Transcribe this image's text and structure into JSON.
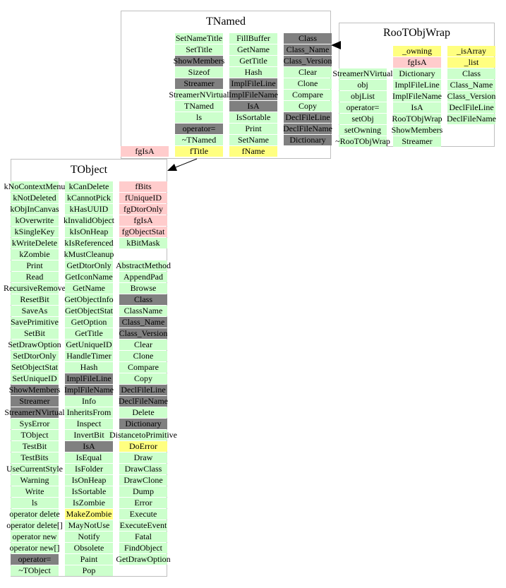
{
  "boxes": [
    {
      "title": "TNamed",
      "columns": [
        [
          null,
          null,
          null,
          null,
          null,
          null,
          null,
          null,
          null,
          null,
          {
            "text": "fgIsA",
            "color": "#ffcccc"
          }
        ],
        [
          {
            "text": "SetNameTitle",
            "color": "#ccffcc"
          },
          {
            "text": "SetTitle",
            "color": "#ccffcc"
          },
          {
            "text": "ShowMembers",
            "color": "#808080"
          },
          {
            "text": "Sizeof",
            "color": "#ccffcc"
          },
          {
            "text": "Streamer",
            "color": "#808080"
          },
          {
            "text": "StreamerNVirtual",
            "color": "#ccffcc"
          },
          {
            "text": "TNamed",
            "color": "#ccffcc"
          },
          {
            "text": "ls",
            "color": "#ccffcc"
          },
          {
            "text": "operator=",
            "color": "#808080"
          },
          {
            "text": "~TNamed",
            "color": "#ccffcc"
          },
          {
            "text": "fTitle",
            "color": "#ffff80"
          }
        ],
        [
          {
            "text": "FillBuffer",
            "color": "#ccffcc"
          },
          {
            "text": "GetName",
            "color": "#ccffcc"
          },
          {
            "text": "GetTitle",
            "color": "#ccffcc"
          },
          {
            "text": "Hash",
            "color": "#ccffcc"
          },
          {
            "text": "ImplFileLine",
            "color": "#808080"
          },
          {
            "text": "ImplFileName",
            "color": "#808080"
          },
          {
            "text": "IsA",
            "color": "#808080"
          },
          {
            "text": "IsSortable",
            "color": "#ccffcc"
          },
          {
            "text": "Print",
            "color": "#ccffcc"
          },
          {
            "text": "SetName",
            "color": "#ccffcc"
          },
          {
            "text": "fName",
            "color": "#ffff80"
          }
        ],
        [
          {
            "text": "Class",
            "color": "#808080"
          },
          {
            "text": "Class_Name",
            "color": "#808080"
          },
          {
            "text": "Class_Version",
            "color": "#808080"
          },
          {
            "text": "Clear",
            "color": "#ccffcc"
          },
          {
            "text": "Clone",
            "color": "#ccffcc"
          },
          {
            "text": "Compare",
            "color": "#ccffcc"
          },
          {
            "text": "Copy",
            "color": "#ccffcc"
          },
          {
            "text": "DeclFileLine",
            "color": "#808080"
          },
          {
            "text": "DeclFileName",
            "color": "#808080"
          },
          {
            "text": "Dictionary",
            "color": "#808080"
          }
        ]
      ]
    },
    {
      "title": "RooTObjWrap",
      "columns": [
        [
          null,
          null,
          {
            "text": "StreamerNVirtual",
            "color": "#ccffcc"
          },
          {
            "text": "obj",
            "color": "#ccffcc"
          },
          {
            "text": "objList",
            "color": "#ccffcc"
          },
          {
            "text": "operator=",
            "color": "#ccffcc"
          },
          {
            "text": "setObj",
            "color": "#ccffcc"
          },
          {
            "text": "setOwning",
            "color": "#ccffcc"
          },
          {
            "text": "~RooTObjWrap",
            "color": "#ccffcc"
          }
        ],
        [
          {
            "text": "_owning",
            "color": "#ffff80"
          },
          {
            "text": "fgIsA",
            "color": "#ffcccc"
          },
          {
            "text": "Dictionary",
            "color": "#ccffcc"
          },
          {
            "text": "ImplFileLine",
            "color": "#ccffcc"
          },
          {
            "text": "ImplFileName",
            "color": "#ccffcc"
          },
          {
            "text": "IsA",
            "color": "#ccffcc"
          },
          {
            "text": "RooTObjWrap",
            "color": "#ccffcc"
          },
          {
            "text": "ShowMembers",
            "color": "#ccffcc"
          },
          {
            "text": "Streamer",
            "color": "#ccffcc"
          }
        ],
        [
          {
            "text": "_isArray",
            "color": "#ffff80"
          },
          {
            "text": "_list",
            "color": "#ffff80"
          },
          {
            "text": "Class",
            "color": "#ccffcc"
          },
          {
            "text": "Class_Name",
            "color": "#ccffcc"
          },
          {
            "text": "Class_Version",
            "color": "#ccffcc"
          },
          {
            "text": "DeclFileLine",
            "color": "#ccffcc"
          },
          {
            "text": "DeclFileName",
            "color": "#ccffcc"
          }
        ]
      ]
    },
    {
      "title": "TObject",
      "columns": [
        [
          {
            "text": "kNoContextMenu",
            "color": "#ccffcc"
          },
          {
            "text": "kNotDeleted",
            "color": "#ccffcc"
          },
          {
            "text": "kObjInCanvas",
            "color": "#ccffcc"
          },
          {
            "text": "kOverwrite",
            "color": "#ccffcc"
          },
          {
            "text": "kSingleKey",
            "color": "#ccffcc"
          },
          {
            "text": "kWriteDelete",
            "color": "#ccffcc"
          },
          {
            "text": "kZombie",
            "color": "#ccffcc"
          },
          {
            "text": "Print",
            "color": "#ccffcc"
          },
          {
            "text": "Read",
            "color": "#ccffcc"
          },
          {
            "text": "RecursiveRemove",
            "color": "#ccffcc"
          },
          {
            "text": "ResetBit",
            "color": "#ccffcc"
          },
          {
            "text": "SaveAs",
            "color": "#ccffcc"
          },
          {
            "text": "SavePrimitive",
            "color": "#ccffcc"
          },
          {
            "text": "SetBit",
            "color": "#ccffcc"
          },
          {
            "text": "SetDrawOption",
            "color": "#ccffcc"
          },
          {
            "text": "SetDtorOnly",
            "color": "#ccffcc"
          },
          {
            "text": "SetObjectStat",
            "color": "#ccffcc"
          },
          {
            "text": "SetUniqueID",
            "color": "#ccffcc"
          },
          {
            "text": "ShowMembers",
            "color": "#808080"
          },
          {
            "text": "Streamer",
            "color": "#808080"
          },
          {
            "text": "StreamerNVirtual",
            "color": "#808080"
          },
          {
            "text": "SysError",
            "color": "#ccffcc"
          },
          {
            "text": "TObject",
            "color": "#ccffcc"
          },
          {
            "text": "TestBit",
            "color": "#ccffcc"
          },
          {
            "text": "TestBits",
            "color": "#ccffcc"
          },
          {
            "text": "UseCurrentStyle",
            "color": "#ccffcc"
          },
          {
            "text": "Warning",
            "color": "#ccffcc"
          },
          {
            "text": "Write",
            "color": "#ccffcc"
          },
          {
            "text": "ls",
            "color": "#ccffcc"
          },
          {
            "text": "operator delete",
            "color": "#ccffcc"
          },
          {
            "text": "operator delete[]",
            "color": "#ccffcc"
          },
          {
            "text": "operator new",
            "color": "#ccffcc"
          },
          {
            "text": "operator new[]",
            "color": "#ccffcc"
          },
          {
            "text": "operator=",
            "color": "#808080"
          },
          {
            "text": "~TObject",
            "color": "#ccffcc"
          }
        ],
        [
          {
            "text": "kCanDelete",
            "color": "#ccffcc"
          },
          {
            "text": "kCannotPick",
            "color": "#ccffcc"
          },
          {
            "text": "kHasUUID",
            "color": "#ccffcc"
          },
          {
            "text": "kInvalidObject",
            "color": "#ccffcc"
          },
          {
            "text": "kIsOnHeap",
            "color": "#ccffcc"
          },
          {
            "text": "kIsReferenced",
            "color": "#ccffcc"
          },
          {
            "text": "kMustCleanup",
            "color": "#ccffcc"
          },
          {
            "text": "GetDtorOnly",
            "color": "#ccffcc"
          },
          {
            "text": "GetIconName",
            "color": "#ccffcc"
          },
          {
            "text": "GetName",
            "color": "#ccffcc"
          },
          {
            "text": "GetObjectInfo",
            "color": "#ccffcc"
          },
          {
            "text": "GetObjectStat",
            "color": "#ccffcc"
          },
          {
            "text": "GetOption",
            "color": "#ccffcc"
          },
          {
            "text": "GetTitle",
            "color": "#ccffcc"
          },
          {
            "text": "GetUniqueID",
            "color": "#ccffcc"
          },
          {
            "text": "HandleTimer",
            "color": "#ccffcc"
          },
          {
            "text": "Hash",
            "color": "#ccffcc"
          },
          {
            "text": "ImplFileLine",
            "color": "#808080"
          },
          {
            "text": "ImplFileName",
            "color": "#808080"
          },
          {
            "text": "Info",
            "color": "#ccffcc"
          },
          {
            "text": "InheritsFrom",
            "color": "#ccffcc"
          },
          {
            "text": "Inspect",
            "color": "#ccffcc"
          },
          {
            "text": "InvertBit",
            "color": "#ccffcc"
          },
          {
            "text": "IsA",
            "color": "#808080"
          },
          {
            "text": "IsEqual",
            "color": "#ccffcc"
          },
          {
            "text": "IsFolder",
            "color": "#ccffcc"
          },
          {
            "text": "IsOnHeap",
            "color": "#ccffcc"
          },
          {
            "text": "IsSortable",
            "color": "#ccffcc"
          },
          {
            "text": "IsZombie",
            "color": "#ccffcc"
          },
          {
            "text": "MakeZombie",
            "color": "#ffff80"
          },
          {
            "text": "MayNotUse",
            "color": "#ccffcc"
          },
          {
            "text": "Notify",
            "color": "#ccffcc"
          },
          {
            "text": "Obsolete",
            "color": "#ccffcc"
          },
          {
            "text": "Paint",
            "color": "#ccffcc"
          },
          {
            "text": "Pop",
            "color": "#ccffcc"
          }
        ],
        [
          {
            "text": "fBits",
            "color": "#ffcccc"
          },
          {
            "text": "fUniqueID",
            "color": "#ffcccc"
          },
          {
            "text": "fgDtorOnly",
            "color": "#ffcccc"
          },
          {
            "text": "fgIsA",
            "color": "#ffcccc"
          },
          {
            "text": "fgObjectStat",
            "color": "#ffcccc"
          },
          {
            "text": "kBitMask",
            "color": "#ccffcc"
          },
          null,
          {
            "text": "AbstractMethod",
            "color": "#ccffcc"
          },
          {
            "text": "AppendPad",
            "color": "#ccffcc"
          },
          {
            "text": "Browse",
            "color": "#ccffcc"
          },
          {
            "text": "Class",
            "color": "#808080"
          },
          {
            "text": "ClassName",
            "color": "#ccffcc"
          },
          {
            "text": "Class_Name",
            "color": "#808080"
          },
          {
            "text": "Class_Version",
            "color": "#808080"
          },
          {
            "text": "Clear",
            "color": "#ccffcc"
          },
          {
            "text": "Clone",
            "color": "#ccffcc"
          },
          {
            "text": "Compare",
            "color": "#ccffcc"
          },
          {
            "text": "Copy",
            "color": "#ccffcc"
          },
          {
            "text": "DeclFileLine",
            "color": "#808080"
          },
          {
            "text": "DeclFileName",
            "color": "#808080"
          },
          {
            "text": "Delete",
            "color": "#ccffcc"
          },
          {
            "text": "Dictionary",
            "color": "#808080"
          },
          {
            "text": "DistancetoPrimitive",
            "color": "#ccffcc"
          },
          {
            "text": "DoError",
            "color": "#ffff80"
          },
          {
            "text": "Draw",
            "color": "#ccffcc"
          },
          {
            "text": "DrawClass",
            "color": "#ccffcc"
          },
          {
            "text": "DrawClone",
            "color": "#ccffcc"
          },
          {
            "text": "Dump",
            "color": "#ccffcc"
          },
          {
            "text": "Error",
            "color": "#ccffcc"
          },
          {
            "text": "Execute",
            "color": "#ccffcc"
          },
          {
            "text": "ExecuteEvent",
            "color": "#ccffcc"
          },
          {
            "text": "Fatal",
            "color": "#ccffcc"
          },
          {
            "text": "FindObject",
            "color": "#ccffcc"
          },
          {
            "text": "GetDrawOption",
            "color": "#ccffcc"
          }
        ]
      ]
    }
  ]
}
